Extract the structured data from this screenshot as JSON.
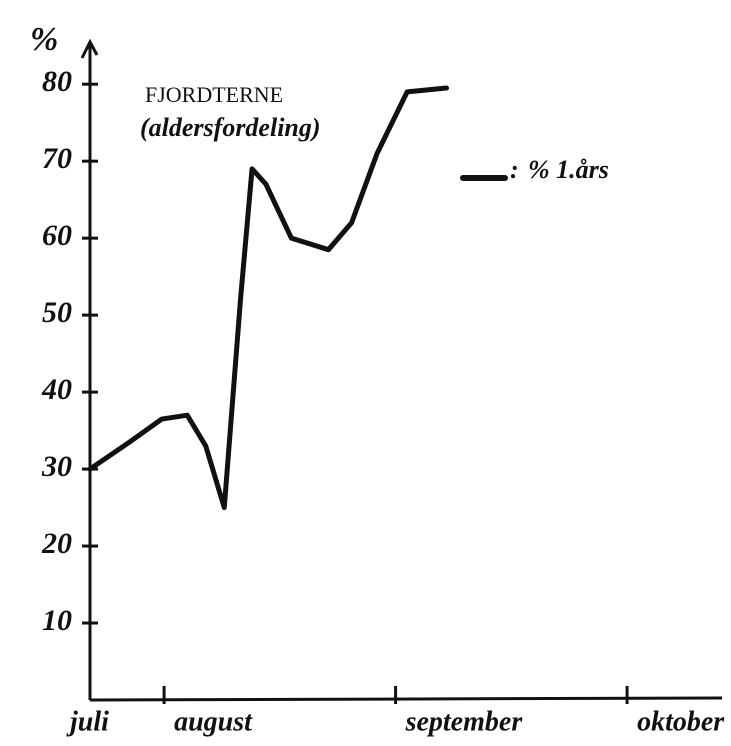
{
  "chart_data": {
    "type": "line",
    "title": "FJORDTERNE",
    "subtitle": "(aldersfordeling)",
    "y_label": "%",
    "x": [
      0.68,
      0.85,
      0.99,
      1.1,
      1.18,
      1.26,
      1.33,
      1.38,
      1.44,
      1.55,
      1.71,
      1.81,
      1.92,
      2.05,
      2.22
    ],
    "series": [
      {
        "name": "% 1.års",
        "color": "#111111",
        "values": [
          30,
          33.5,
          36.5,
          37,
          33,
          25,
          52,
          69,
          67,
          60,
          58.5,
          62,
          71,
          79,
          79.5
        ]
      }
    ],
    "xlim": [
      0.68,
      3.41
    ],
    "xticks": [
      {
        "value": 0.68,
        "label": "juli"
      },
      {
        "value": 1,
        "label": "august"
      },
      {
        "value": 2,
        "label": "september"
      },
      {
        "value": 3,
        "label": "oktober"
      }
    ],
    "ylim": [
      0,
      86
    ],
    "yticks": [
      10,
      20,
      30,
      40,
      50,
      60,
      70,
      80
    ],
    "grid": false
  }
}
